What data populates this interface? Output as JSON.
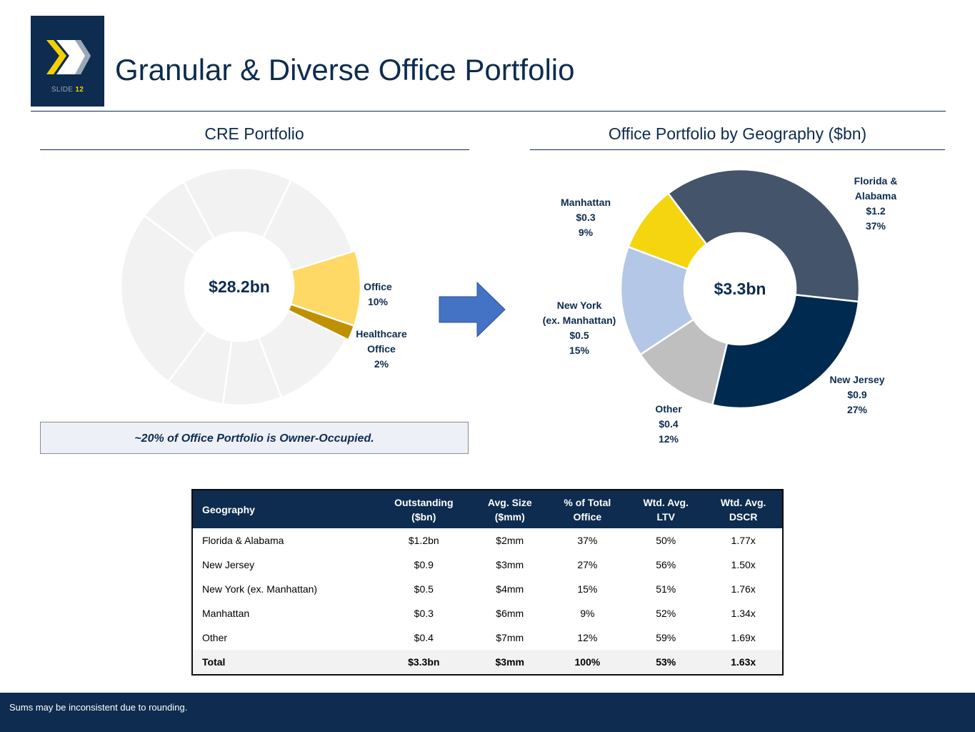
{
  "header": {
    "slide_label": "SLIDE",
    "slide_number": "12",
    "title": "Granular & Diverse Office Portfolio"
  },
  "left_section": {
    "title": "CRE Portfolio",
    "note": "~20% of Office Portfolio is Owner-Occupied."
  },
  "right_section": {
    "title": "Office Portfolio by Geography ($bn)"
  },
  "colors": {
    "navy": "#0d2c4f",
    "office": "#fed966",
    "healthcare_office": "#bf9000",
    "other_segment": "#f2f2f2",
    "arrow": "#4472c4"
  },
  "chart_data": [
    {
      "type": "pie",
      "style": "donut",
      "title": "CRE Portfolio",
      "center_label": "$28.2bn",
      "slices": [
        {
          "name": "Office",
          "label_lines": [
            "Office",
            "10%"
          ],
          "value": 10,
          "color": "#fed966",
          "highlight": true
        },
        {
          "name": "Healthcare Office",
          "label_lines": [
            "Healthcare",
            "Office",
            "2%"
          ],
          "value": 2,
          "color": "#bf9000",
          "highlight": true
        },
        {
          "name": "",
          "value": 12,
          "color": "#f2f2f2"
        },
        {
          "name": "",
          "value": 8,
          "color": "#f2f2f2"
        },
        {
          "name": "",
          "value": 8,
          "color": "#f2f2f2"
        },
        {
          "name": "",
          "value": 25,
          "color": "#f2f2f2"
        },
        {
          "name": "",
          "value": 7,
          "color": "#f2f2f2"
        },
        {
          "name": "",
          "value": 15,
          "color": "#f2f2f2"
        },
        {
          "name": "",
          "value": 13,
          "color": "#f2f2f2"
        }
      ]
    },
    {
      "type": "pie",
      "style": "donut",
      "title": "Office Portfolio by Geography ($bn)",
      "center_label": "$3.3bn",
      "slices": [
        {
          "name": "Florida & Alabama",
          "label_lines": [
            "Florida &",
            "Alabama",
            "$1.2",
            "37%"
          ],
          "value": 37,
          "color": "#44546a"
        },
        {
          "name": "New Jersey",
          "label_lines": [
            "New Jersey",
            "$0.9",
            "27%"
          ],
          "value": 27,
          "color": "#002a4f"
        },
        {
          "name": "Other",
          "label_lines": [
            "Other",
            "$0.4",
            "12%"
          ],
          "value": 12,
          "color": "#bfbfbf"
        },
        {
          "name": "New York (ex. Manhattan)",
          "label_lines": [
            "New York",
            "(ex. Manhattan)",
            "$0.5",
            "15%"
          ],
          "value": 15,
          "color": "#b4c7e7"
        },
        {
          "name": "Manhattan",
          "label_lines": [
            "Manhattan",
            "$0.3",
            "9%"
          ],
          "value": 9,
          "color": "#f5d50f"
        }
      ]
    }
  ],
  "table": {
    "headers": [
      [
        "Geography"
      ],
      [
        "Outstanding",
        "($bn)"
      ],
      [
        "Avg. Size",
        "($mm)"
      ],
      [
        "% of Total",
        "Office"
      ],
      [
        "Wtd. Avg.",
        "LTV"
      ],
      [
        "Wtd. Avg.",
        "DSCR"
      ]
    ],
    "rows": [
      [
        "Florida & Alabama",
        "$1.2bn",
        "$2mm",
        "37%",
        "50%",
        "1.77x"
      ],
      [
        "New Jersey",
        "$0.9",
        "$3mm",
        "27%",
        "56%",
        "1.50x"
      ],
      [
        "New York (ex. Manhattan)",
        "$0.5",
        "$4mm",
        "15%",
        "51%",
        "1.76x"
      ],
      [
        "Manhattan",
        "$0.3",
        "$6mm",
        "9%",
        "52%",
        "1.34x"
      ],
      [
        "Other",
        "$0.4",
        "$7mm",
        "12%",
        "59%",
        "1.69x"
      ]
    ],
    "total": [
      "Total",
      "$3.3bn",
      "$3mm",
      "100%",
      "53%",
      "1.63x"
    ]
  },
  "footer": {
    "note": "Sums may be inconsistent due to rounding."
  }
}
